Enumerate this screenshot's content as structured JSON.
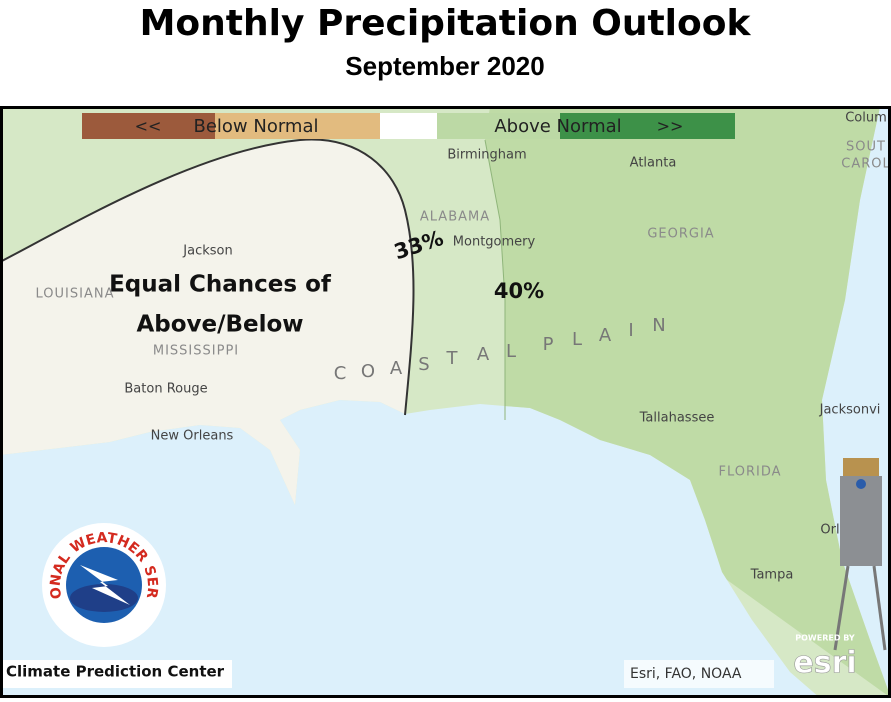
{
  "header": {
    "title": "Monthly Precipitation Outlook",
    "subtitle": "September 2020"
  },
  "legend": {
    "left_arrows": "<<",
    "below": "Below Normal",
    "above": "Above Normal",
    "right_arrows": ">>"
  },
  "annotations": {
    "equal_chances": [
      "Equal Chances of",
      "Above/Below"
    ],
    "pct_33": "33%",
    "pct_40": "40%"
  },
  "places": [
    "Birmingham",
    "Atlanta",
    "ALABAMA",
    "Montgomery",
    "GEORGIA",
    "Jackson",
    "LOUISIANA",
    "MISSISSIPPI",
    "Baton Rouge",
    "New Orleans",
    "Tallahassee",
    "Jacksonvi",
    "FLORIDA",
    "Tampa",
    "Orl",
    "Colum",
    "SOUT",
    "CAROL"
  ],
  "region_letters": [
    "C",
    "O",
    "A",
    "S",
    "T",
    "A",
    "L",
    "P",
    "L",
    "A",
    "I",
    "N"
  ],
  "logo": {
    "text": "NATIONAL WEATHER SERVICE"
  },
  "footer": {
    "source": "Climate Prediction Center",
    "attribution": "Esri, FAO, NOAA",
    "powered_by": "POWERED BY",
    "esri": "esri"
  }
}
